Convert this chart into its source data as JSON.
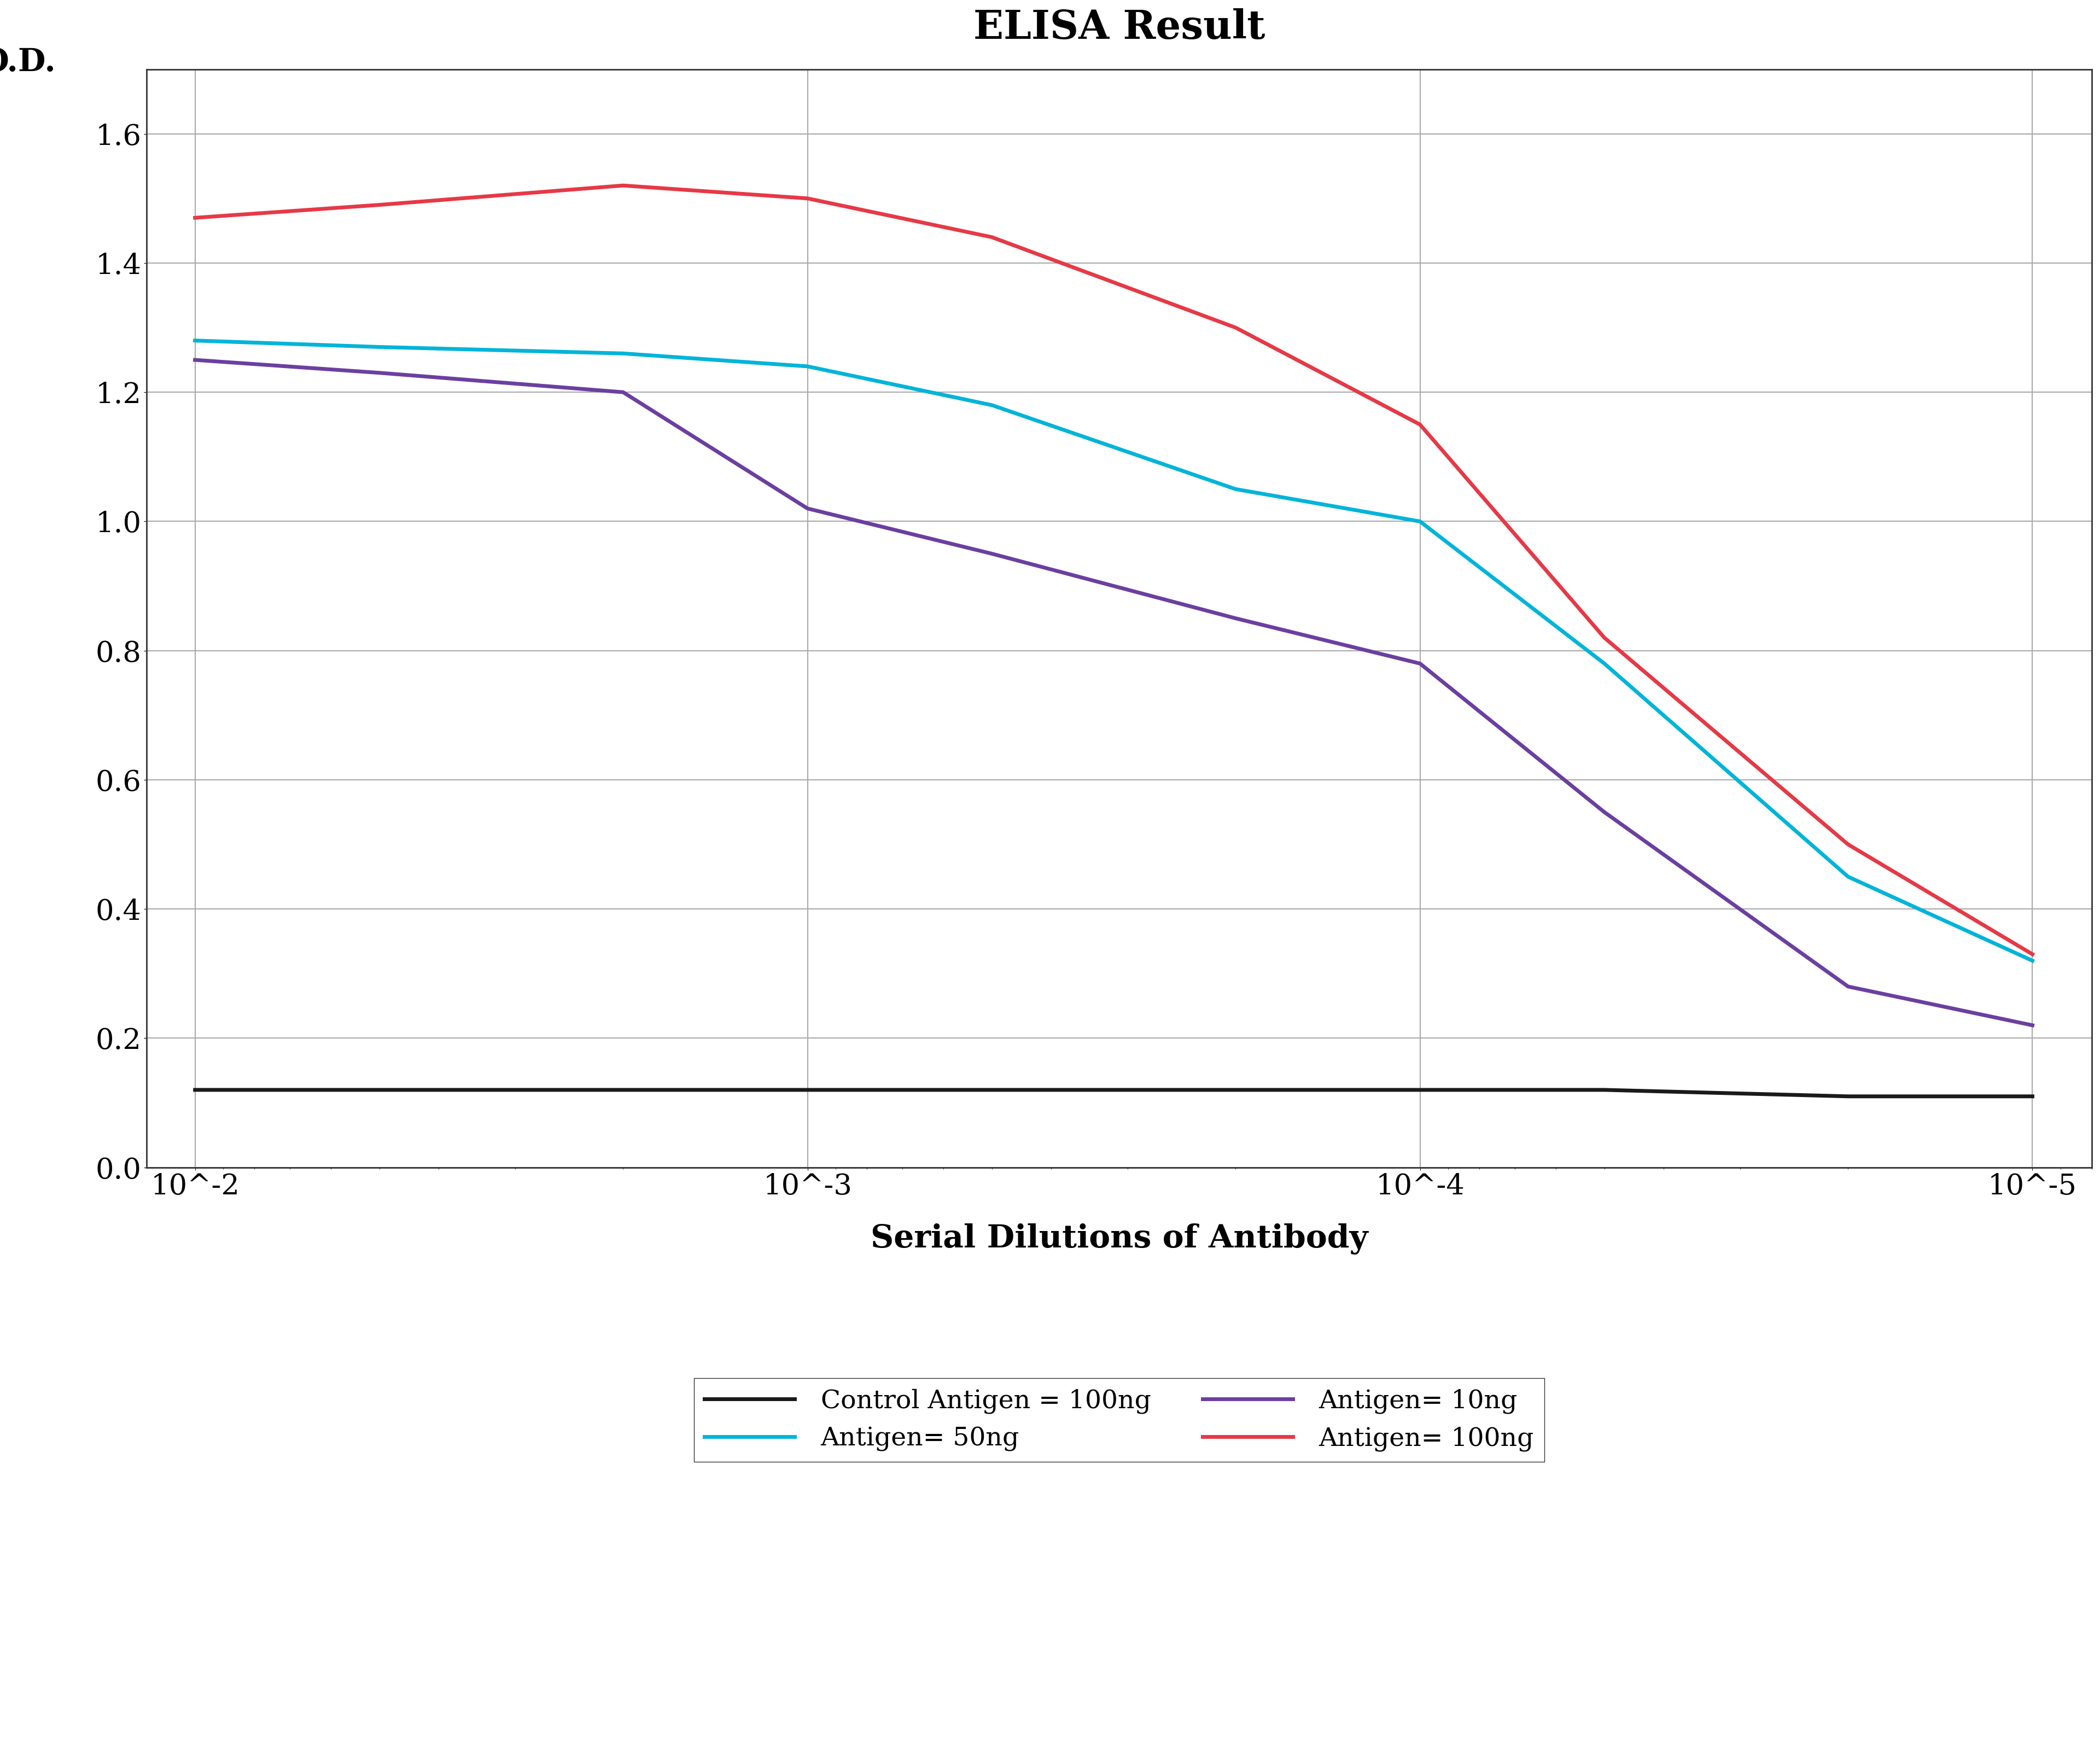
{
  "title": "ELISA Result",
  "ylabel": "O.D.",
  "xlabel": "Serial Dilutions of Antibody",
  "x_ticks": [
    0.01,
    0.001,
    0.0001,
    1e-05
  ],
  "x_tick_labels": [
    "10^-2",
    "10^-3",
    "10^-4",
    "10^-5"
  ],
  "ylim": [
    0,
    1.7
  ],
  "yticks": [
    0,
    0.2,
    0.4,
    0.6,
    0.8,
    1.0,
    1.2,
    1.4,
    1.6
  ],
  "series": [
    {
      "label": "Control Antigen = 100ng",
      "color": "#1a1a1a",
      "x": [
        0.01,
        0.005,
        0.002,
        0.001,
        0.0005,
        0.0002,
        0.0001,
        5e-05,
        2e-05,
        1e-05
      ],
      "y": [
        0.12,
        0.12,
        0.12,
        0.12,
        0.12,
        0.12,
        0.12,
        0.12,
        0.11,
        0.11
      ]
    },
    {
      "label": "Antigen= 10ng",
      "color": "#6b3fa0",
      "x": [
        0.01,
        0.005,
        0.002,
        0.001,
        0.0005,
        0.0002,
        0.0001,
        5e-05,
        2e-05,
        1e-05
      ],
      "y": [
        1.25,
        1.23,
        1.2,
        1.02,
        0.95,
        0.85,
        0.78,
        0.55,
        0.28,
        0.22
      ]
    },
    {
      "label": "Antigen= 50ng",
      "color": "#00b4d8",
      "x": [
        0.01,
        0.005,
        0.002,
        0.001,
        0.0005,
        0.0002,
        0.0001,
        5e-05,
        2e-05,
        1e-05
      ],
      "y": [
        1.28,
        1.27,
        1.26,
        1.24,
        1.18,
        1.05,
        1.0,
        0.78,
        0.45,
        0.32
      ]
    },
    {
      "label": "Antigen= 100ng",
      "color": "#e63946",
      "x": [
        0.01,
        0.005,
        0.002,
        0.001,
        0.0005,
        0.0002,
        0.0001,
        5e-05,
        2e-05,
        1e-05
      ],
      "y": [
        1.47,
        1.49,
        1.52,
        1.5,
        1.44,
        1.3,
        1.15,
        0.82,
        0.5,
        0.33
      ]
    }
  ],
  "bg_color": "#f5f5f0",
  "title_fontsize": 52,
  "label_fontsize": 42,
  "tick_fontsize": 38,
  "legend_fontsize": 34,
  "linewidth": 5
}
